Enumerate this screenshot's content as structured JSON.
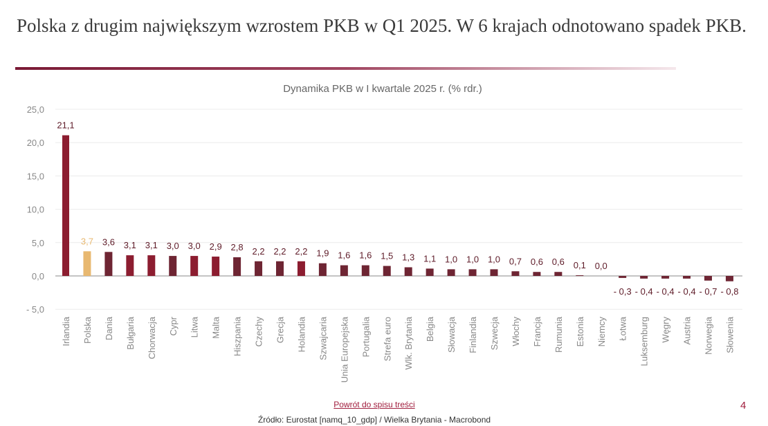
{
  "slide": {
    "title": "Polska z drugim największym wzrostem PKB w Q1 2025. W 6 krajach odnotowano spadek PKB.",
    "back_link": "Powrót do spisu treści",
    "page_number": "4",
    "source": "Źródło: Eurostat [namq_10_gdp] / Wielka Brytania - Macrobond"
  },
  "colors": {
    "bar": "#6e2533",
    "bar_red": "#8c1d30",
    "highlight": "#e8b870",
    "label": "#5e1b28"
  },
  "chart_data": {
    "type": "bar",
    "title": "Dynamika PKB w I kwartale 2025 r. (% rdr.)",
    "xlabel": "",
    "ylabel": "",
    "ylim": [
      -5,
      25
    ],
    "yticks": [
      25,
      20,
      15,
      10,
      5,
      0,
      -5
    ],
    "ytick_labels": [
      "25,0",
      "20,0",
      "15,0",
      "10,0",
      "5,0",
      "0,0",
      "- 5,0"
    ],
    "grid": true,
    "categories": [
      "Irlandia",
      "Polska",
      "Dania",
      "Bułgaria",
      "Chorwacja",
      "Cypr",
      "Litwa",
      "Malta",
      "Hiszpania",
      "Czechy",
      "Grecja",
      "Holandia",
      "Szwajcaria",
      "Unia Europejska",
      "Portugalia",
      "Strefa euro",
      "Wlk. Brytania",
      "Belgia",
      "Słowacja",
      "Finlandia",
      "Szwecja",
      "Włochy",
      "Francja",
      "Rumunia",
      "Estonia",
      "Niemcy",
      "Łotwa",
      "Luksemburg",
      "Węgry",
      "Austria",
      "Norwegia",
      "Słowenia"
    ],
    "values": [
      21.1,
      3.7,
      3.6,
      3.1,
      3.1,
      3.0,
      3.0,
      2.9,
      2.8,
      2.2,
      2.2,
      2.2,
      1.9,
      1.6,
      1.6,
      1.5,
      1.3,
      1.1,
      1.0,
      1.0,
      1.0,
      0.7,
      0.6,
      0.6,
      0.1,
      0.0,
      -0.3,
      -0.4,
      -0.4,
      -0.4,
      -0.7,
      -0.8
    ],
    "data_labels": [
      "21,1",
      "3,7",
      "3,6",
      "3,1",
      "3,1",
      "3,0",
      "3,0",
      "2,9",
      "2,8",
      "2,2",
      "2,2",
      "2,2",
      "1,9",
      "1,6",
      "1,6",
      "1,5",
      "1,3",
      "1,1",
      "1,0",
      "1,0",
      "1,0",
      "0,7",
      "0,6",
      "0,6",
      "0,1",
      "0,0",
      "- 0,3",
      "- 0,4",
      "- 0,4",
      "- 0,4",
      "- 0,7",
      "- 0,8"
    ],
    "highlight": "Polska"
  }
}
